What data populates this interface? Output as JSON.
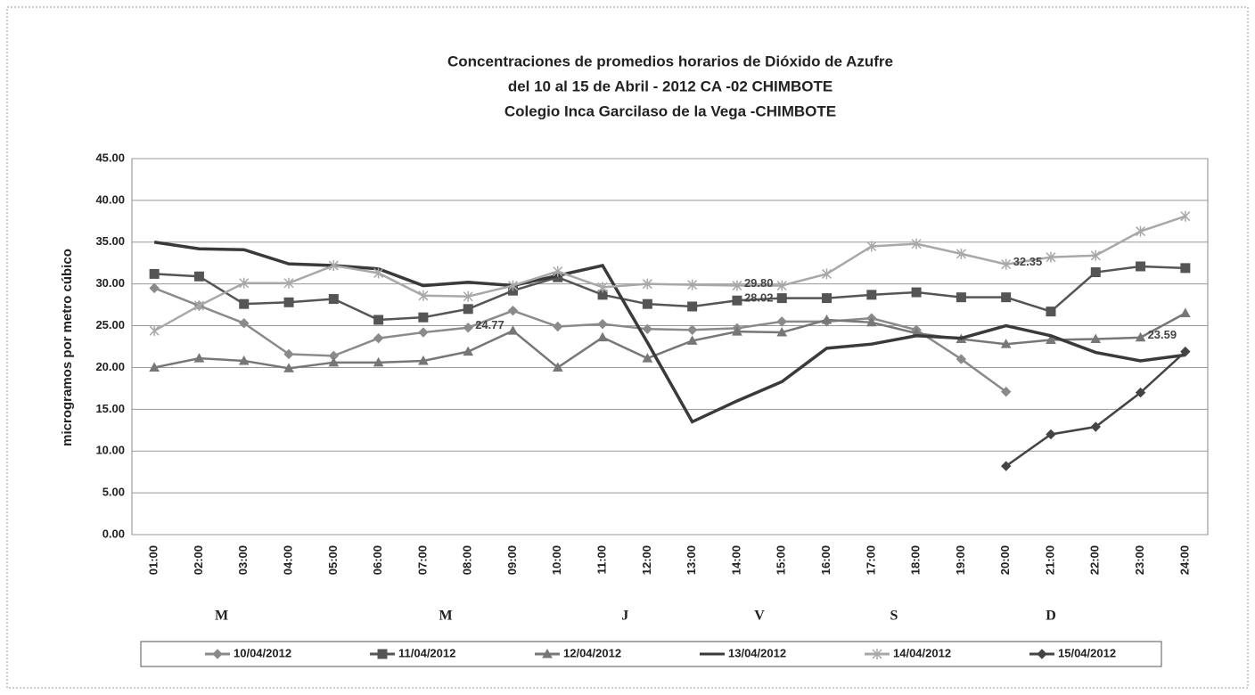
{
  "chart_data": {
    "type": "line",
    "title": [
      "Concentraciones de promedios horarios de Dióxido de Azufre",
      "del 10 al 15 de Abril - 2012  CA -02 CHIMBOTE",
      "Colegio Inca Garcilaso de la Vega -CHIMBOTE"
    ],
    "y_label": "microgramos por metro cúbico",
    "categories": [
      "01:00",
      "02:00",
      "03:00",
      "04:00",
      "05:00",
      "06:00",
      "07:00",
      "08:00",
      "09:00",
      "10:00",
      "11:00",
      "12:00",
      "13:00",
      "14:00",
      "15:00",
      "16:00",
      "17:00",
      "18:00",
      "19:00",
      "20:00",
      "21:00",
      "22:00",
      "23:00",
      "24:00"
    ],
    "day_labels": [
      "M",
      "M",
      "J",
      "V",
      "S",
      "D"
    ],
    "ylim": [
      0,
      45
    ],
    "yticks": [
      {
        "value": 0,
        "label": "0.00"
      },
      {
        "value": 5,
        "label": "5.00"
      },
      {
        "value": 10,
        "label": "10.00"
      },
      {
        "value": 15,
        "label": "15.00"
      },
      {
        "value": 20,
        "label": "20.00"
      },
      {
        "value": 25,
        "label": "25.00"
      },
      {
        "value": 30,
        "label": "30.00"
      },
      {
        "value": 35,
        "label": "35.00"
      },
      {
        "value": 40,
        "label": "40.00"
      },
      {
        "value": 45,
        "label": "45.00"
      }
    ],
    "grid": true,
    "legend": "bottom",
    "series": [
      {
        "name": "10/04/2012",
        "color": "#8a8a8a",
        "marker": "diamond",
        "values": [
          29.5,
          27.4,
          25.3,
          21.6,
          21.4,
          23.5,
          24.2,
          24.77,
          26.8,
          24.9,
          25.2,
          24.6,
          24.5,
          24.7,
          25.5,
          25.5,
          25.9,
          24.5,
          21,
          17.1,
          null,
          null,
          null,
          null
        ],
        "value_labels": [
          null,
          null,
          null,
          null,
          null,
          null,
          null,
          "24.77",
          null,
          null,
          null,
          null,
          null,
          null,
          null,
          null,
          null,
          null,
          null,
          null,
          null,
          null,
          null,
          null
        ]
      },
      {
        "name": "11/04/2012",
        "color": "#555555",
        "marker": "square",
        "values": [
          31.2,
          30.9,
          27.6,
          27.8,
          28.2,
          25.7,
          26,
          27,
          29.2,
          30.8,
          28.7,
          27.6,
          27.3,
          28.02,
          28.3,
          28.3,
          28.7,
          29,
          28.4,
          28.4,
          26.7,
          31.4,
          32.1,
          31.9
        ],
        "value_labels": [
          null,
          null,
          null,
          null,
          null,
          null,
          null,
          null,
          null,
          null,
          null,
          null,
          null,
          "28.02",
          null,
          null,
          null,
          null,
          null,
          null,
          null,
          null,
          null,
          null
        ]
      },
      {
        "name": "12/04/2012",
        "color": "#777777",
        "marker": "triangle",
        "values": [
          20,
          21.1,
          20.8,
          19.9,
          20.6,
          20.6,
          20.8,
          21.9,
          24.4,
          20,
          23.6,
          21.1,
          23.2,
          24.3,
          24.2,
          25.7,
          25.4,
          24.1,
          23.4,
          22.8,
          23.3,
          23.4,
          23.59,
          26.5
        ],
        "value_labels": [
          null,
          null,
          null,
          null,
          null,
          null,
          null,
          null,
          null,
          null,
          null,
          null,
          null,
          null,
          null,
          null,
          null,
          null,
          null,
          null,
          null,
          null,
          "23.59",
          null
        ]
      },
      {
        "name": "13/04/2012",
        "color": "#3a3a3a",
        "marker": "none",
        "values": [
          35,
          34.2,
          34.1,
          32.4,
          32.2,
          31.8,
          29.8,
          30.2,
          29.8,
          31,
          32.2,
          23,
          13.5,
          16,
          18.3,
          22.3,
          22.8,
          23.8,
          23.5,
          25,
          23.8,
          21.8,
          20.8,
          21.5
        ]
      },
      {
        "name": "14/04/2012",
        "color": "#a8a8a8",
        "marker": "star",
        "values": [
          24.4,
          27.4,
          30.1,
          30.1,
          32.2,
          31.3,
          28.6,
          28.5,
          29.8,
          31.5,
          29.6,
          30,
          29.9,
          29.8,
          29.8,
          31.2,
          34.5,
          34.8,
          33.6,
          32.35,
          33.2,
          33.4,
          36.3,
          38.1
        ],
        "value_labels": [
          null,
          null,
          null,
          null,
          null,
          null,
          null,
          null,
          null,
          null,
          null,
          null,
          null,
          "29.80",
          null,
          null,
          null,
          null,
          null,
          "32.35",
          null,
          null,
          null,
          null
        ]
      },
      {
        "name": "15/04/2012",
        "color": "#444444",
        "marker": "diamond",
        "values": [
          null,
          null,
          null,
          null,
          null,
          null,
          null,
          null,
          null,
          null,
          null,
          null,
          null,
          null,
          null,
          null,
          null,
          null,
          null,
          8.2,
          12,
          12.9,
          17,
          21.9
        ]
      }
    ]
  }
}
